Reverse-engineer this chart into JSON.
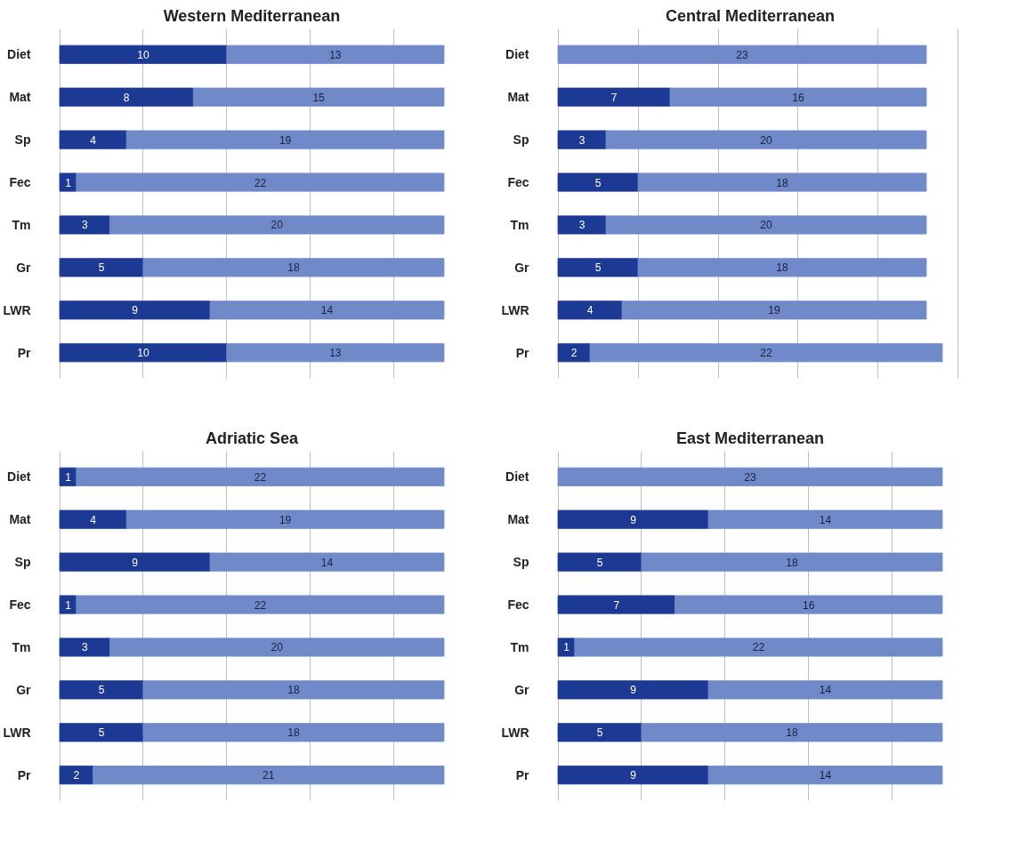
{
  "chart_data": [
    {
      "type": "bar",
      "orientation": "horizontal",
      "stacked": true,
      "title": "Western Mediterranean",
      "categories": [
        "Diet",
        "Mat",
        "Sp",
        "Fec",
        "Tm",
        "Gr",
        "LWR",
        "Pr"
      ],
      "series": [
        {
          "color": "#1c3a94",
          "values": [
            10,
            8,
            4,
            1,
            3,
            5,
            9,
            10
          ]
        },
        {
          "color": "#6f89c9",
          "values": [
            13,
            15,
            19,
            22,
            20,
            18,
            14,
            13
          ]
        }
      ],
      "grid": "x",
      "tick_labels": "y",
      "data_labels": true
    },
    {
      "type": "bar",
      "orientation": "horizontal",
      "stacked": true,
      "title": "Central Mediterranean",
      "categories": [
        "Diet",
        "Mat",
        "Sp",
        "Fec",
        "Tm",
        "Gr",
        "LWR",
        "Pr"
      ],
      "series": [
        {
          "color": "#1c3a94",
          "values": [
            null,
            7,
            3,
            5,
            3,
            5,
            4,
            2
          ]
        },
        {
          "color": "#6f89c9",
          "values": [
            23,
            16,
            20,
            18,
            20,
            18,
            19,
            22
          ]
        }
      ],
      "grid": "x",
      "tick_labels": "y",
      "data_labels": true
    },
    {
      "type": "bar",
      "orientation": "horizontal",
      "stacked": true,
      "title": "Adriatic Sea",
      "categories": [
        "Diet",
        "Mat",
        "Sp",
        "Fec",
        "Tm",
        "Gr",
        "LWR",
        "Pr"
      ],
      "series": [
        {
          "color": "#1c3a94",
          "values": [
            1,
            4,
            9,
            1,
            3,
            5,
            5,
            2
          ]
        },
        {
          "color": "#6f89c9",
          "values": [
            22,
            19,
            14,
            22,
            20,
            18,
            18,
            21
          ]
        }
      ],
      "grid": "x",
      "tick_labels": "y",
      "data_labels": true
    },
    {
      "type": "bar",
      "orientation": "horizontal",
      "stacked": true,
      "title": "East Mediterranean",
      "categories": [
        "Diet",
        "Mat",
        "Sp",
        "Fec",
        "Tm",
        "Gr",
        "LWR",
        "Pr"
      ],
      "series": [
        {
          "color": "#1c3a94",
          "values": [
            null,
            9,
            5,
            7,
            1,
            9,
            5,
            9
          ]
        },
        {
          "color": "#6f89c9",
          "values": [
            23,
            14,
            18,
            16,
            22,
            14,
            18,
            14
          ]
        }
      ],
      "grid": "x",
      "tick_labels": "y",
      "data_labels": true
    }
  ]
}
